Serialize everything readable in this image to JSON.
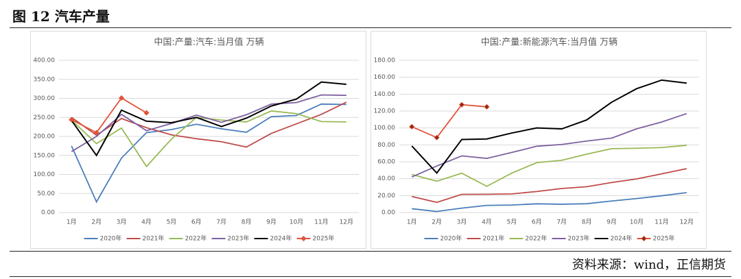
{
  "header": {
    "title": "图 12 汽车产量"
  },
  "footer": {
    "source": "资料来源：wind，正信期货"
  },
  "chart_data": [
    {
      "type": "line",
      "title": "中国:产量:汽车:当月值 万辆",
      "categories": [
        "1月",
        "2月",
        "3月",
        "4月",
        "5月",
        "6月",
        "7月",
        "8月",
        "9月",
        "10月",
        "11月",
        "12月"
      ],
      "ylim": [
        0,
        400
      ],
      "yticks": [
        {
          "value": 0,
          "label": "0.00"
        },
        {
          "value": 50,
          "label": "50.00"
        },
        {
          "value": 100,
          "label": "100.00"
        },
        {
          "value": 150,
          "label": "150.00"
        },
        {
          "value": 200,
          "label": "200.00"
        },
        {
          "value": 250,
          "label": "250.00"
        },
        {
          "value": 300,
          "label": "300.00"
        },
        {
          "value": 350,
          "label": "350.00"
        },
        {
          "value": 400,
          "label": "400.00"
        }
      ],
      "grid": true,
      "series": [
        {
          "name": "2020年",
          "color": "#4a7ebb",
          "values": [
            175,
            28,
            143,
            210,
            218,
            232,
            220,
            211,
            252,
            255,
            285,
            284
          ]
        },
        {
          "name": "2021年",
          "color": "#be4b48",
          "values": [
            250,
            203,
            247,
            223,
            204,
            194,
            186,
            172,
            208,
            233,
            258,
            290
          ]
        },
        {
          "name": "2022年",
          "color": "#98b954",
          "values": [
            243,
            181,
            222,
            121,
            193,
            250,
            243,
            238,
            267,
            260,
            239,
            238
          ]
        },
        {
          "name": "2023年",
          "color": "#7d60a0",
          "values": [
            160,
            200,
            258,
            215,
            234,
            256,
            237,
            257,
            285,
            289,
            309,
            308
          ]
        },
        {
          "name": "2024年",
          "color": "#000000",
          "values": [
            242,
            150,
            269,
            240,
            236,
            250,
            226,
            248,
            280,
            298,
            343,
            337
          ]
        },
        {
          "name": "2025年",
          "color": "#e2533a",
          "marker": "diamond",
          "values": [
            244,
            210,
            301,
            262,
            null,
            null,
            null,
            null,
            null,
            null,
            null,
            null
          ]
        }
      ]
    },
    {
      "type": "line",
      "title": "中国:产量:新能源汽车:当月值 万辆",
      "categories": [
        "1月",
        "2月",
        "3月",
        "4月",
        "5月",
        "6月",
        "7月",
        "8月",
        "9月",
        "10月",
        "11月",
        "12月"
      ],
      "ylim": [
        0,
        180
      ],
      "yticks": [
        {
          "value": 0,
          "label": "0.00"
        },
        {
          "value": 20,
          "label": "20.00"
        },
        {
          "value": 40,
          "label": "40.00"
        },
        {
          "value": 60,
          "label": "60.00"
        },
        {
          "value": 80,
          "label": "80.00"
        },
        {
          "value": 100,
          "label": "100.00"
        },
        {
          "value": 120,
          "label": "120.00"
        },
        {
          "value": 140,
          "label": "140.00"
        },
        {
          "value": 160,
          "label": "160.00"
        },
        {
          "value": 180,
          "label": "180.00"
        }
      ],
      "grid": true,
      "series": [
        {
          "name": "2020年",
          "color": "#4a7ebb",
          "values": [
            4.5,
            1.2,
            5.2,
            8.4,
            8.8,
            10.3,
            9.8,
            10.4,
            13.6,
            16.5,
            19.8,
            23.5
          ]
        },
        {
          "name": "2021年",
          "color": "#be4b48",
          "values": [
            19,
            12,
            21.5,
            21.6,
            22,
            24.8,
            28.4,
            30.5,
            35.5,
            39.7,
            45.7,
            51.9
          ]
        },
        {
          "name": "2022年",
          "color": "#98b954",
          "values": [
            45,
            37,
            46.5,
            31,
            46.6,
            59,
            61.7,
            69,
            75.5,
            76,
            76.8,
            79.5
          ]
        },
        {
          "name": "2023年",
          "color": "#7d60a0",
          "values": [
            42,
            55,
            67,
            64,
            71,
            78.4,
            80.5,
            84.5,
            88,
            99,
            107,
            117
          ]
        },
        {
          "name": "2024年",
          "color": "#000000",
          "values": [
            78.7,
            46.7,
            86.4,
            87,
            94,
            100,
            98.9,
            109.5,
            130.5,
            146.5,
            156.6,
            153
          ]
        },
        {
          "name": "2025年",
          "color": "#e2533a",
          "marker": "diamond",
          "values": [
            101.5,
            88.6,
            127.5,
            125,
            null,
            null,
            null,
            null,
            null,
            null,
            null,
            null
          ]
        }
      ]
    }
  ]
}
